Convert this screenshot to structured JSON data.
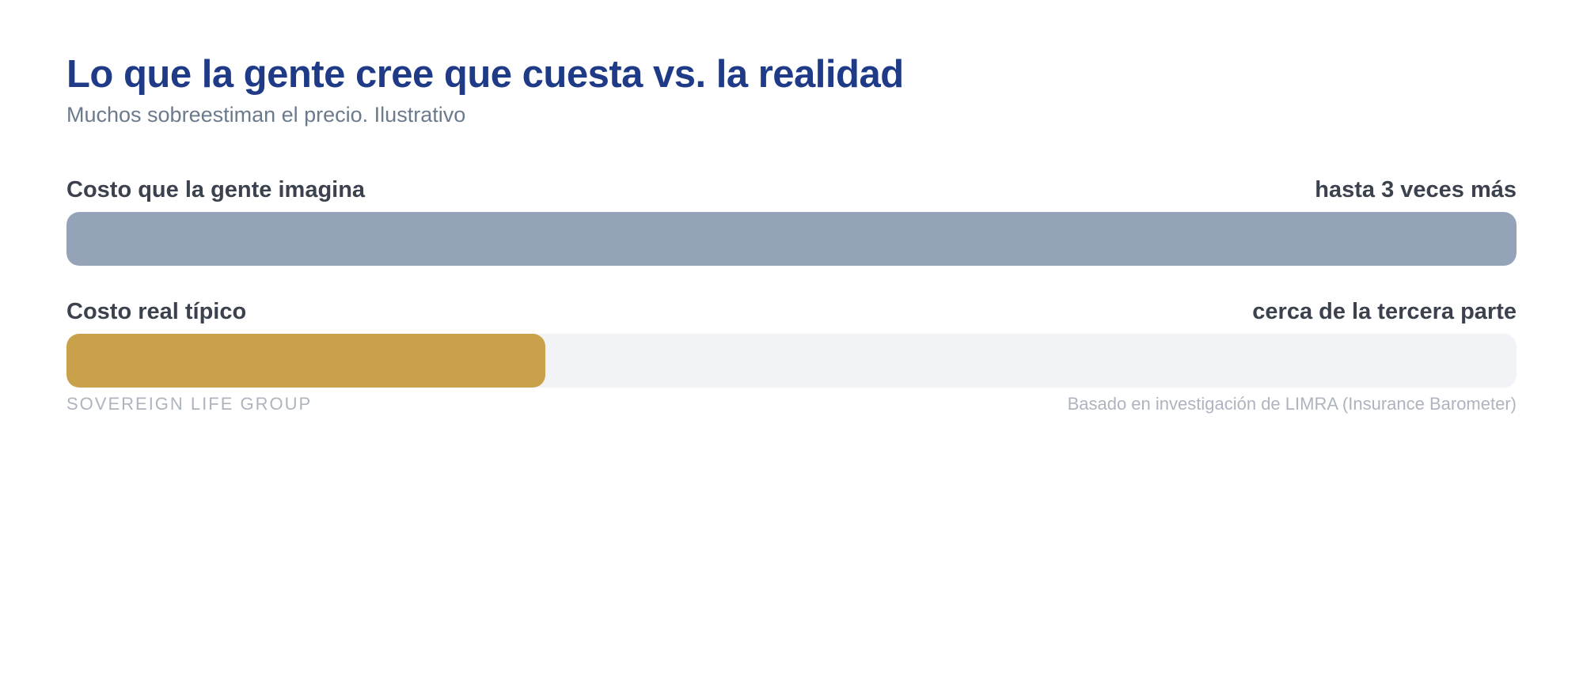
{
  "chart_data": {
    "type": "bar",
    "orientation": "horizontal",
    "title": "Lo que la gente cree que cuesta vs. la realidad",
    "subtitle": "Muchos sobreestiman el precio. Ilustrativo",
    "bars": [
      {
        "label": "Costo que la gente imagina",
        "value_label": "hasta 3 veces más",
        "fraction": 1.0,
        "color": "#94a3b8"
      },
      {
        "label": "Costo real típico",
        "value_label": "cerca de la tercera parte",
        "fraction": 0.33,
        "color": "#c9a14a"
      }
    ],
    "track_color": "#f1f3f6",
    "grid": false
  },
  "footer": {
    "brand": "SOVEREIGN LIFE GROUP",
    "source": "Basado en investigación de LIMRA (Insurance Barometer)"
  },
  "colors": {
    "title": "#1f3a86",
    "subtitle": "#6b7a8d",
    "label": "#3b414d",
    "footer": "#aeb4bf"
  }
}
